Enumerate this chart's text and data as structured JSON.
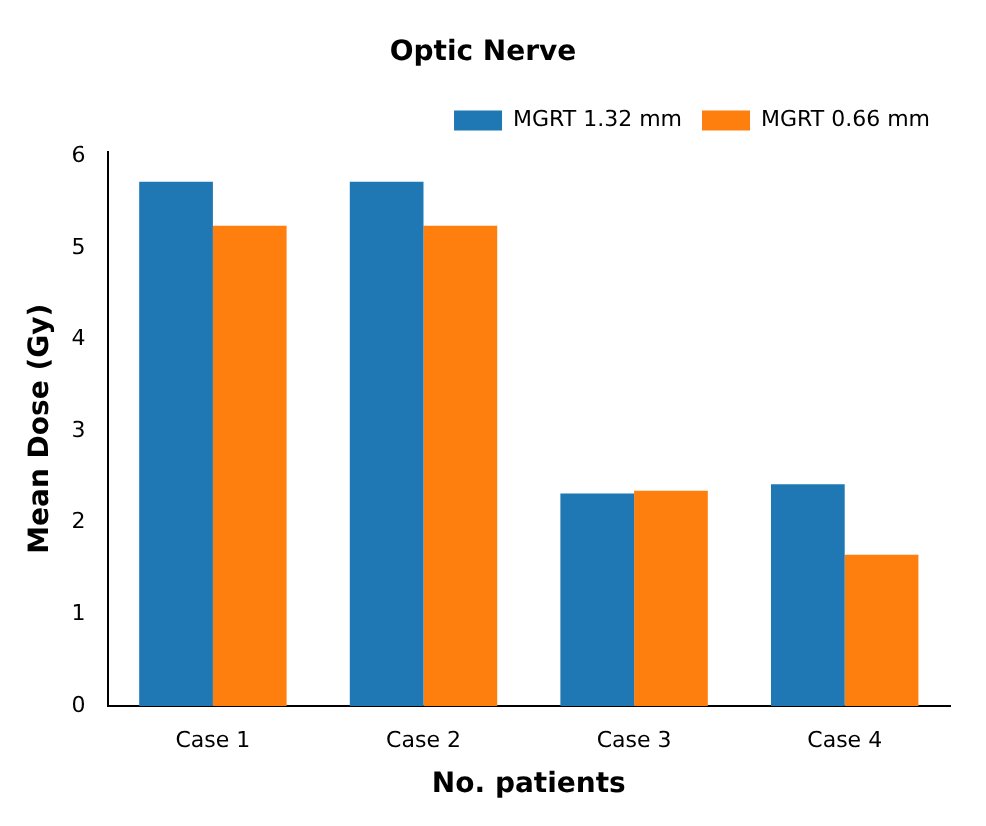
{
  "chart_data": {
    "type": "bar",
    "title": "Optic Nerve",
    "xlabel": "No. patients",
    "ylabel": "Mean Dose (Gy)",
    "categories": [
      "Case 1",
      "Case 2",
      "Case 3",
      "Case 4"
    ],
    "series": [
      {
        "name": "MGRT 1.32 mm",
        "color": "#1f77b4",
        "values": [
          5.72,
          5.72,
          2.32,
          2.42
        ]
      },
      {
        "name": "MGRT 0.66 mm",
        "color": "#ff7f0e",
        "values": [
          5.24,
          5.24,
          2.35,
          1.65
        ]
      }
    ],
    "ylim": [
      0,
      6.05
    ],
    "yticks": [
      0,
      1,
      2,
      3,
      4,
      5,
      6
    ],
    "grid": false,
    "legend": "top right"
  }
}
